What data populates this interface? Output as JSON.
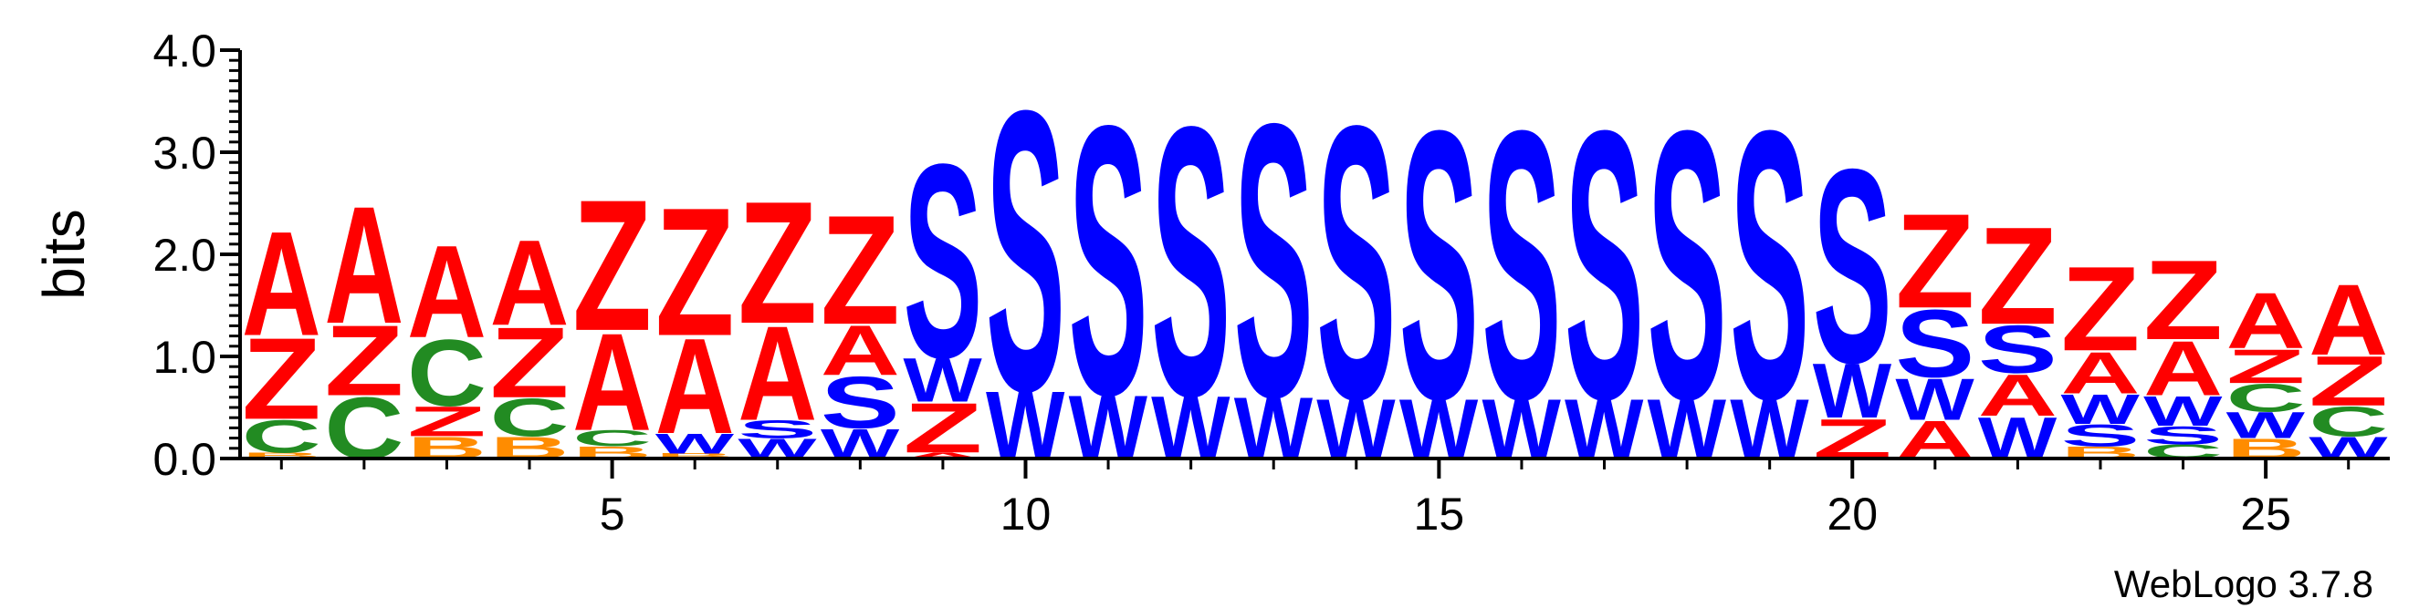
{
  "chart_data": {
    "type": "sequence-logo",
    "ylabel": "bits",
    "ylim": [
      0,
      4.0
    ],
    "yticks": [
      "0.0",
      "1.0",
      "2.0",
      "3.0",
      "4.0"
    ],
    "xlim": [
      0.5,
      26.5
    ],
    "xticks": [
      5,
      10,
      15,
      20,
      25
    ],
    "credit": "WebLogo 3.7.8",
    "colors": {
      "A": "#ff0000",
      "Z": "#ff0000",
      "S": "#0000ff",
      "W": "#0000ff",
      "C": "#228b22",
      "B": "#ff8c00"
    },
    "positions": [
      {
        "pos": 1,
        "stack": [
          {
            "l": "B",
            "h": 0.06
          },
          {
            "l": "C",
            "h": 0.33
          },
          {
            "l": "Z",
            "h": 0.82
          },
          {
            "l": "A",
            "h": 1.05
          }
        ]
      },
      {
        "pos": 2,
        "stack": [
          {
            "l": "C",
            "h": 0.62
          },
          {
            "l": "Z",
            "h": 0.71
          },
          {
            "l": "A",
            "h": 1.18
          }
        ]
      },
      {
        "pos": 3,
        "stack": [
          {
            "l": "B",
            "h": 0.22
          },
          {
            "l": "Z",
            "h": 0.3
          },
          {
            "l": "C",
            "h": 0.67
          },
          {
            "l": "A",
            "h": 0.93
          }
        ]
      },
      {
        "pos": 4,
        "stack": [
          {
            "l": "B",
            "h": 0.22
          },
          {
            "l": "C",
            "h": 0.38
          },
          {
            "l": "Z",
            "h": 0.71
          },
          {
            "l": "A",
            "h": 0.86
          }
        ]
      },
      {
        "pos": 5,
        "stack": [
          {
            "l": "B",
            "h": 0.12
          },
          {
            "l": "C",
            "h": 0.16
          },
          {
            "l": "A",
            "h": 0.98
          },
          {
            "l": "Z",
            "h": 1.32
          }
        ]
      },
      {
        "pos": 6,
        "stack": [
          {
            "l": "B",
            "h": 0.05
          },
          {
            "l": "W",
            "h": 0.2
          },
          {
            "l": "A",
            "h": 0.96
          },
          {
            "l": "Z",
            "h": 1.29
          }
        ]
      },
      {
        "pos": 7,
        "stack": [
          {
            "l": "W",
            "h": 0.2
          },
          {
            "l": "S",
            "h": 0.18
          },
          {
            "l": "A",
            "h": 0.95
          },
          {
            "l": "Z",
            "h": 1.23
          }
        ]
      },
      {
        "pos": 8,
        "stack": [
          {
            "l": "W",
            "h": 0.3
          },
          {
            "l": "S",
            "h": 0.52
          },
          {
            "l": "A",
            "h": 0.5
          },
          {
            "l": "Z",
            "h": 1.1
          }
        ]
      },
      {
        "pos": 9,
        "stack": [
          {
            "l": "A",
            "h": 0.06
          },
          {
            "l": "Z",
            "h": 0.5
          },
          {
            "l": "W",
            "h": 0.44
          },
          {
            "l": "S",
            "h": 1.95
          }
        ]
      },
      {
        "pos": 10,
        "stack": [
          {
            "l": "W",
            "h": 0.68
          },
          {
            "l": "S",
            "h": 2.82
          }
        ]
      },
      {
        "pos": 11,
        "stack": [
          {
            "l": "W",
            "h": 0.64
          },
          {
            "l": "S",
            "h": 2.71
          }
        ]
      },
      {
        "pos": 12,
        "stack": [
          {
            "l": "W",
            "h": 0.63
          },
          {
            "l": "S",
            "h": 2.71
          }
        ]
      },
      {
        "pos": 13,
        "stack": [
          {
            "l": "W",
            "h": 0.62
          },
          {
            "l": "S",
            "h": 2.75
          }
        ]
      },
      {
        "pos": 14,
        "stack": [
          {
            "l": "W",
            "h": 0.6
          },
          {
            "l": "S",
            "h": 2.75
          }
        ]
      },
      {
        "pos": 15,
        "stack": [
          {
            "l": "W",
            "h": 0.6
          },
          {
            "l": "S",
            "h": 2.7
          }
        ]
      },
      {
        "pos": 16,
        "stack": [
          {
            "l": "W",
            "h": 0.6
          },
          {
            "l": "S",
            "h": 2.7
          }
        ]
      },
      {
        "pos": 17,
        "stack": [
          {
            "l": "W",
            "h": 0.6
          },
          {
            "l": "S",
            "h": 2.7
          }
        ]
      },
      {
        "pos": 18,
        "stack": [
          {
            "l": "W",
            "h": 0.6
          },
          {
            "l": "S",
            "h": 2.7
          }
        ]
      },
      {
        "pos": 19,
        "stack": [
          {
            "l": "W",
            "h": 0.6
          },
          {
            "l": "S",
            "h": 2.7
          }
        ]
      },
      {
        "pos": 20,
        "stack": [
          {
            "l": "Z",
            "h": 0.4
          },
          {
            "l": "W",
            "h": 0.55
          },
          {
            "l": "S",
            "h": 1.95
          }
        ]
      },
      {
        "pos": 21,
        "stack": [
          {
            "l": "A",
            "h": 0.38
          },
          {
            "l": "W",
            "h": 0.42
          },
          {
            "l": "S",
            "h": 0.68
          },
          {
            "l": "Z",
            "h": 0.95
          }
        ]
      },
      {
        "pos": 22,
        "stack": [
          {
            "l": "W",
            "h": 0.42
          },
          {
            "l": "A",
            "h": 0.42
          },
          {
            "l": "S",
            "h": 0.48
          },
          {
            "l": "Z",
            "h": 0.98
          }
        ]
      },
      {
        "pos": 23,
        "stack": [
          {
            "l": "B",
            "h": 0.12
          },
          {
            "l": "S",
            "h": 0.22
          },
          {
            "l": "W",
            "h": 0.3
          },
          {
            "l": "A",
            "h": 0.42
          },
          {
            "l": "Z",
            "h": 0.85
          }
        ]
      },
      {
        "pos": 24,
        "stack": [
          {
            "l": "C",
            "h": 0.14
          },
          {
            "l": "S",
            "h": 0.18
          },
          {
            "l": "W",
            "h": 0.3
          },
          {
            "l": "A",
            "h": 0.55
          },
          {
            "l": "Z",
            "h": 0.8
          }
        ]
      },
      {
        "pos": 25,
        "stack": [
          {
            "l": "B",
            "h": 0.2
          },
          {
            "l": "W",
            "h": 0.26
          },
          {
            "l": "C",
            "h": 0.28
          },
          {
            "l": "Z",
            "h": 0.34
          },
          {
            "l": "A",
            "h": 0.56
          }
        ]
      },
      {
        "pos": 26,
        "stack": [
          {
            "l": "W",
            "h": 0.22
          },
          {
            "l": "C",
            "h": 0.3
          },
          {
            "l": "Z",
            "h": 0.5
          },
          {
            "l": "A",
            "h": 0.71
          }
        ]
      }
    ]
  }
}
